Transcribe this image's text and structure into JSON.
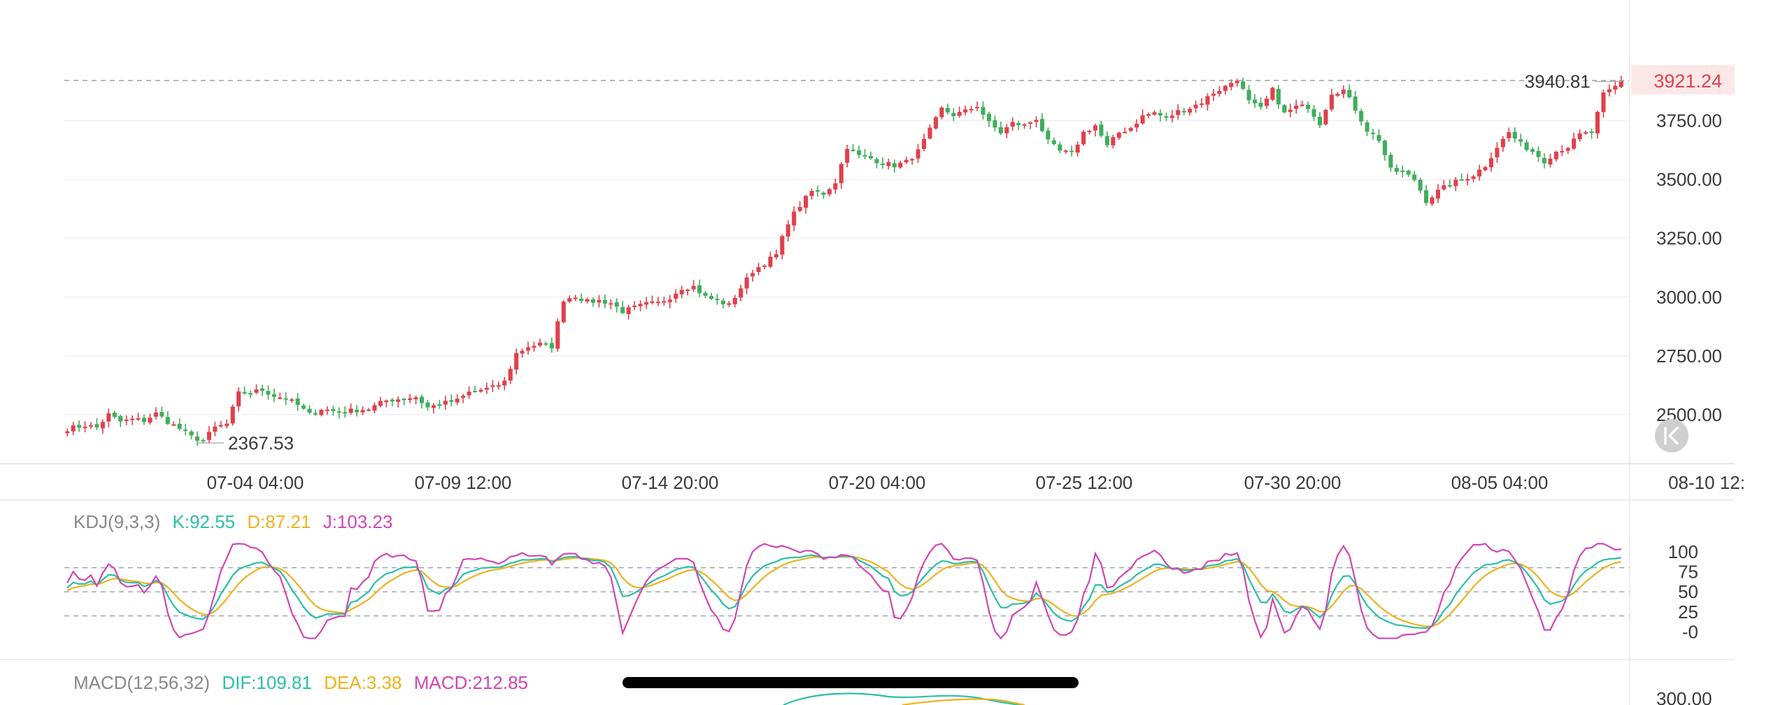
{
  "colors": {
    "up": "#e0404c",
    "down": "#3fae5b",
    "k": "#2bbfa8",
    "d": "#efb21d",
    "j": "#d245b5",
    "current_price_bg": "#fde8e8",
    "current_price_text": "#e0404c",
    "grid": "#efefef",
    "dashed": "#9aa0a6"
  },
  "chart_data": [
    {
      "type": "candlestick",
      "x_labels": [
        "07-04 04:00",
        "07-09 12:00",
        "07-14 20:00",
        "07-20 04:00",
        "07-25 12:00",
        "07-30 20:00",
        "08-05 04:00",
        "08-10 12:"
      ],
      "y_ticks": [
        "3750.00",
        "3500.00",
        "3250.00",
        "3000.00",
        "2750.00",
        "2500.00"
      ],
      "ylim": [
        2330,
        4100
      ],
      "current_price": "3921.24",
      "max_label": "3940.81",
      "min_label": "2367.53",
      "max_value": 3940.81,
      "min_value": 2367.53,
      "anchors": [
        [
          0,
          2440
        ],
        [
          3,
          2455
        ],
        [
          5,
          2445
        ],
        [
          7,
          2500
        ],
        [
          9,
          2470
        ],
        [
          11,
          2480
        ],
        [
          13,
          2475
        ],
        [
          15,
          2505
        ],
        [
          17,
          2470
        ],
        [
          19,
          2440
        ],
        [
          21,
          2405
        ],
        [
          23,
          2390
        ],
        [
          25,
          2445
        ],
        [
          27,
          2460
        ],
        [
          29,
          2590
        ],
        [
          31,
          2595
        ],
        [
          33,
          2605
        ],
        [
          35,
          2580
        ],
        [
          37,
          2570
        ],
        [
          39,
          2540
        ],
        [
          41,
          2500
        ],
        [
          43,
          2525
        ],
        [
          46,
          2510
        ],
        [
          49,
          2520
        ],
        [
          51,
          2525
        ],
        [
          54,
          2560
        ],
        [
          57,
          2570
        ],
        [
          59,
          2575
        ],
        [
          61,
          2530
        ],
        [
          63,
          2545
        ],
        [
          66,
          2560
        ],
        [
          68,
          2595
        ],
        [
          70,
          2605
        ],
        [
          72,
          2615
        ],
        [
          74,
          2640
        ],
        [
          76,
          2760
        ],
        [
          78,
          2790
        ],
        [
          80,
          2800
        ],
        [
          82,
          2790
        ],
        [
          84,
          2990
        ],
        [
          86,
          3005
        ],
        [
          88,
          2980
        ],
        [
          90,
          2985
        ],
        [
          92,
          2975
        ],
        [
          94,
          2940
        ],
        [
          96,
          2955
        ],
        [
          98,
          2970
        ],
        [
          100,
          2975
        ],
        [
          102,
          3000
        ],
        [
          104,
          3040
        ],
        [
          106,
          3045
        ],
        [
          108,
          3000
        ],
        [
          110,
          2985
        ],
        [
          112,
          2965
        ],
        [
          114,
          3040
        ],
        [
          116,
          3110
        ],
        [
          118,
          3145
        ],
        [
          120,
          3180
        ],
        [
          122,
          3320
        ],
        [
          124,
          3390
        ],
        [
          126,
          3450
        ],
        [
          128,
          3440
        ],
        [
          130,
          3490
        ],
        [
          132,
          3640
        ],
        [
          134,
          3600
        ],
        [
          136,
          3590
        ],
        [
          138,
          3570
        ],
        [
          140,
          3560
        ],
        [
          142,
          3575
        ],
        [
          144,
          3620
        ],
        [
          146,
          3710
        ],
        [
          148,
          3800
        ],
        [
          150,
          3775
        ],
        [
          152,
          3790
        ],
        [
          154,
          3815
        ],
        [
          156,
          3740
        ],
        [
          158,
          3700
        ],
        [
          160,
          3740
        ],
        [
          162,
          3730
        ],
        [
          164,
          3760
        ],
        [
          166,
          3660
        ],
        [
          168,
          3620
        ],
        [
          170,
          3610
        ],
        [
          172,
          3700
        ],
        [
          174,
          3730
        ],
        [
          176,
          3640
        ],
        [
          178,
          3700
        ],
        [
          180,
          3720
        ],
        [
          182,
          3770
        ],
        [
          184,
          3785
        ],
        [
          186,
          3760
        ],
        [
          188,
          3790
        ],
        [
          190,
          3805
        ],
        [
          192,
          3830
        ],
        [
          194,
          3870
        ],
        [
          196,
          3895
        ],
        [
          198,
          3930
        ],
        [
          200,
          3830
        ],
        [
          202,
          3800
        ],
        [
          204,
          3880
        ],
        [
          206,
          3780
        ],
        [
          208,
          3810
        ],
        [
          210,
          3810
        ],
        [
          212,
          3740
        ],
        [
          214,
          3870
        ],
        [
          216,
          3880
        ],
        [
          218,
          3800
        ],
        [
          220,
          3710
        ],
        [
          222,
          3670
        ],
        [
          224,
          3540
        ],
        [
          226,
          3530
        ],
        [
          228,
          3500
        ],
        [
          230,
          3410
        ],
        [
          232,
          3450
        ],
        [
          234,
          3480
        ],
        [
          236,
          3500
        ],
        [
          238,
          3520
        ],
        [
          240,
          3560
        ],
        [
          242,
          3640
        ],
        [
          244,
          3700
        ],
        [
          246,
          3650
        ],
        [
          248,
          3620
        ],
        [
          250,
          3580
        ],
        [
          252,
          3620
        ],
        [
          254,
          3640
        ],
        [
          256,
          3690
        ],
        [
          258,
          3700
        ],
        [
          260,
          3860
        ],
        [
          262,
          3895
        ],
        [
          263,
          3921
        ]
      ]
    },
    {
      "type": "line",
      "indicator": "KDJ",
      "label_name": "KDJ(9,3,3)",
      "label_k": "K:92.55",
      "label_d": "D:87.21",
      "label_j": "J:103.23",
      "y_ticks": [
        "100",
        "75",
        "50",
        "25",
        "-0"
      ],
      "ylim": [
        -10,
        112
      ],
      "ref_lines": [
        80,
        50,
        20
      ],
      "last": {
        "K": 92.55,
        "D": 87.21,
        "J": 103.23
      }
    },
    {
      "type": "line",
      "indicator": "MACD",
      "label_name": "MACD(12,56,32)",
      "label_dif": "DIF:109.81",
      "label_dea": "DEA:3.38",
      "label_macd": "MACD:212.85",
      "y_tick_partial": "300.00"
    }
  ],
  "ui": {
    "reset_button_icon": "jump-to-latest-icon"
  }
}
